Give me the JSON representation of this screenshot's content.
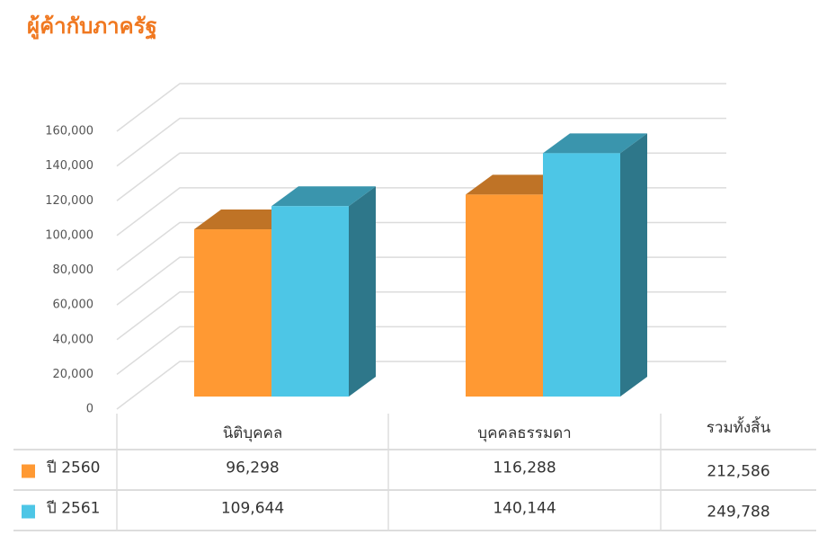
{
  "chart_data": {
    "type": "bar3d",
    "title": "ผู้ค้ากับภาครัฐ",
    "categories": [
      "นิติบุคคล",
      "บุคคลธรรมดา"
    ],
    "series": [
      {
        "name": "ปี 2560",
        "color": "#ff9933",
        "values": [
          96298,
          116288
        ],
        "value_labels": [
          "96,298",
          "116,288"
        ],
        "total": 212586,
        "total_label": "212,586"
      },
      {
        "name": "ปี 2561",
        "color": "#4dc6e6",
        "values": [
          109644,
          140144
        ],
        "value_labels": [
          "109,644",
          "140,144"
        ],
        "total": 249788,
        "total_label": "249,788"
      }
    ],
    "total_header": "รวมทั้งสิ้น",
    "ylim": [
      0,
      160000
    ],
    "yticks": [
      0,
      {
        "value": 20000,
        "label": "20,000"
      },
      {
        "value": 40000,
        "label": "40,000"
      },
      {
        "value": 60000,
        "label": "60,000"
      },
      {
        "value": 80000,
        "label": "80,000"
      },
      {
        "value": 100000,
        "label": "100,000"
      },
      {
        "value": 120000,
        "label": "120,000"
      },
      {
        "value": 140000,
        "label": "140,000"
      },
      {
        "value": 160000,
        "label": "160,000"
      }
    ],
    "grid": true
  }
}
